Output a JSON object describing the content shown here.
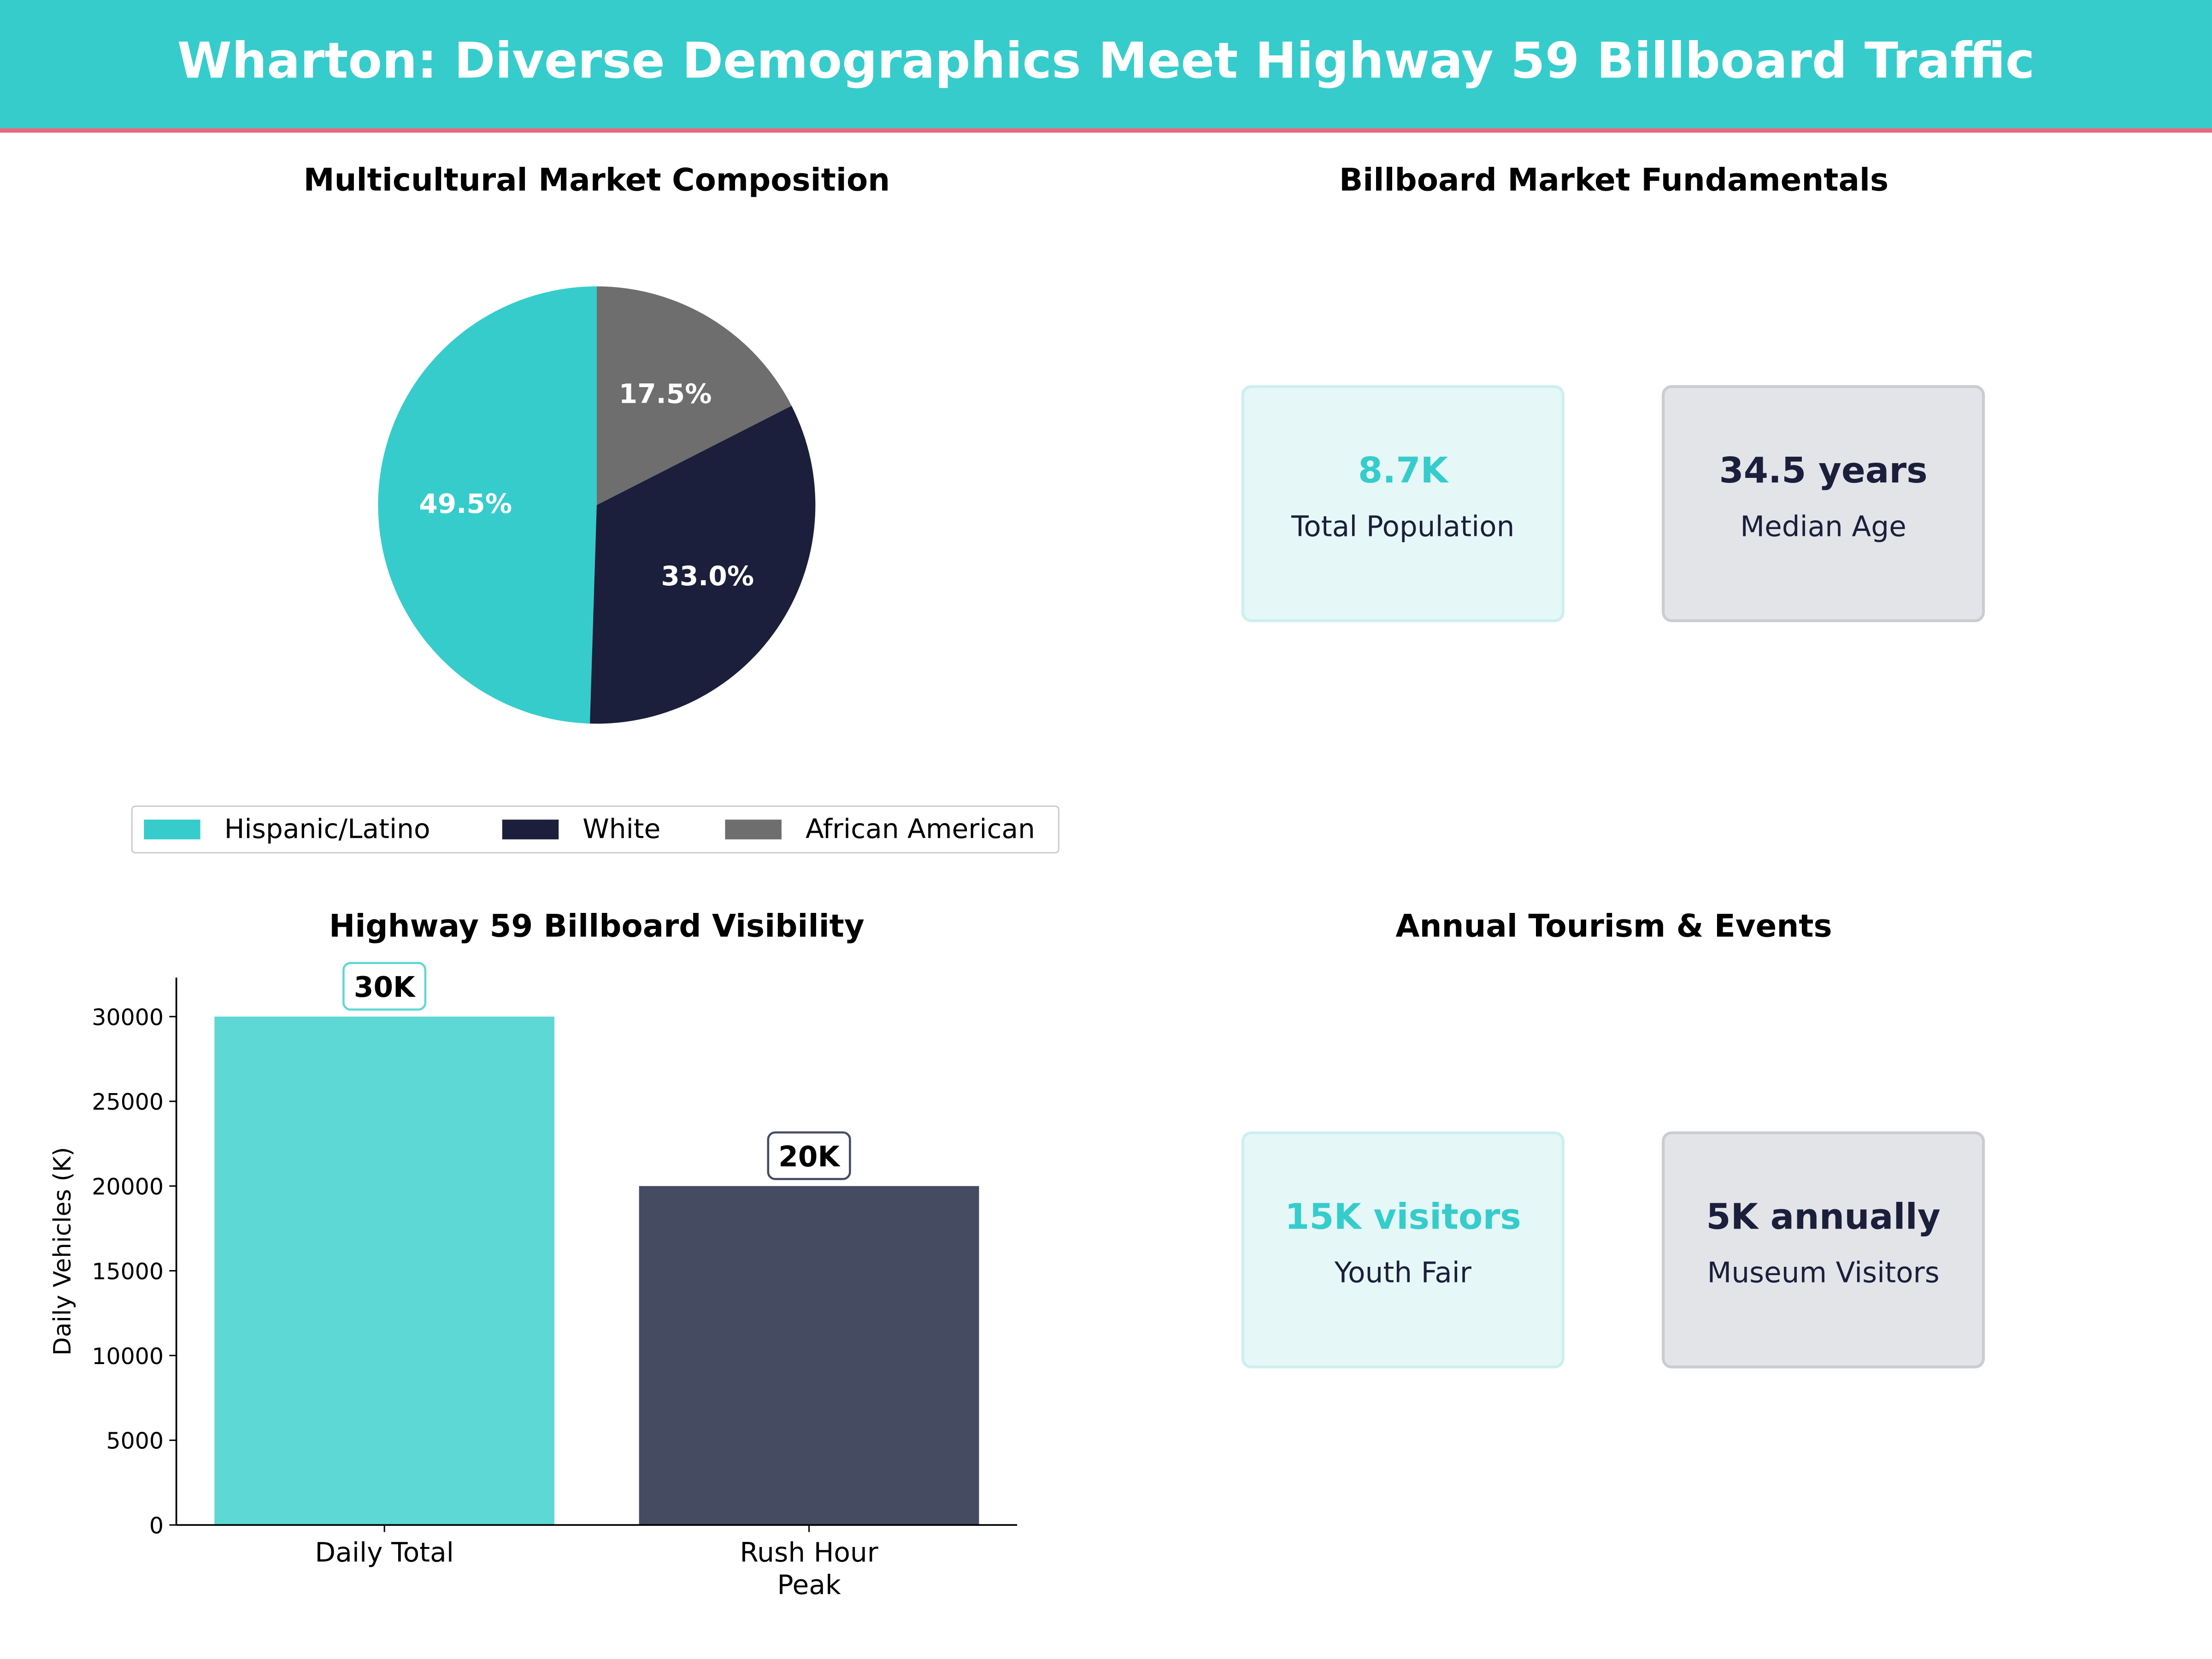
{
  "header": {
    "title": "Wharton: Diverse Demographics Meet Highway 59 Billboard Traffic"
  },
  "colors": {
    "teal": "#36CCCC",
    "navy": "#1B1F3B",
    "gray": "#6E6E6E",
    "accent_line": "#F06478",
    "bar_teal": "#5DD8D5",
    "bar_navy": "#454B61"
  },
  "fundamentals": {
    "title": "Billboard Market Fundamentals",
    "cards": [
      {
        "value": "8.7K",
        "label": "Total Population"
      },
      {
        "value": "34.5 years",
        "label": "Median Age"
      }
    ]
  },
  "tourism": {
    "title": "Annual Tourism & Events",
    "cards": [
      {
        "value": "15K visitors",
        "label": "Youth Fair"
      },
      {
        "value": "5K annually",
        "label": "Museum Visitors"
      }
    ]
  },
  "chart_data": [
    {
      "type": "pie",
      "title": "Multicultural Market Composition",
      "categories": [
        "Hispanic/Latino",
        "White",
        "African American"
      ],
      "values": [
        49.5,
        33.0,
        17.5
      ],
      "labels": [
        "49.5%",
        "33.0%",
        "17.5%"
      ],
      "colors": [
        "#36CCCC",
        "#1B1F3B",
        "#6E6E6E"
      ],
      "legend": "bottom"
    },
    {
      "type": "bar",
      "title": "Highway 59 Billboard Visibility",
      "categories": [
        "Daily Total",
        "Rush Hour\nPeak"
      ],
      "values": [
        30000,
        20000
      ],
      "data_labels": [
        "30K",
        "20K"
      ],
      "colors": [
        "#5DD8D5",
        "#454B61"
      ],
      "xlabel": "",
      "ylabel": "Daily Vehicles (K)",
      "ylim": [
        0,
        32300
      ],
      "yticks": [
        "0",
        "5000",
        "10000",
        "15000",
        "20000",
        "25000",
        "30000"
      ],
      "grid": false
    }
  ]
}
